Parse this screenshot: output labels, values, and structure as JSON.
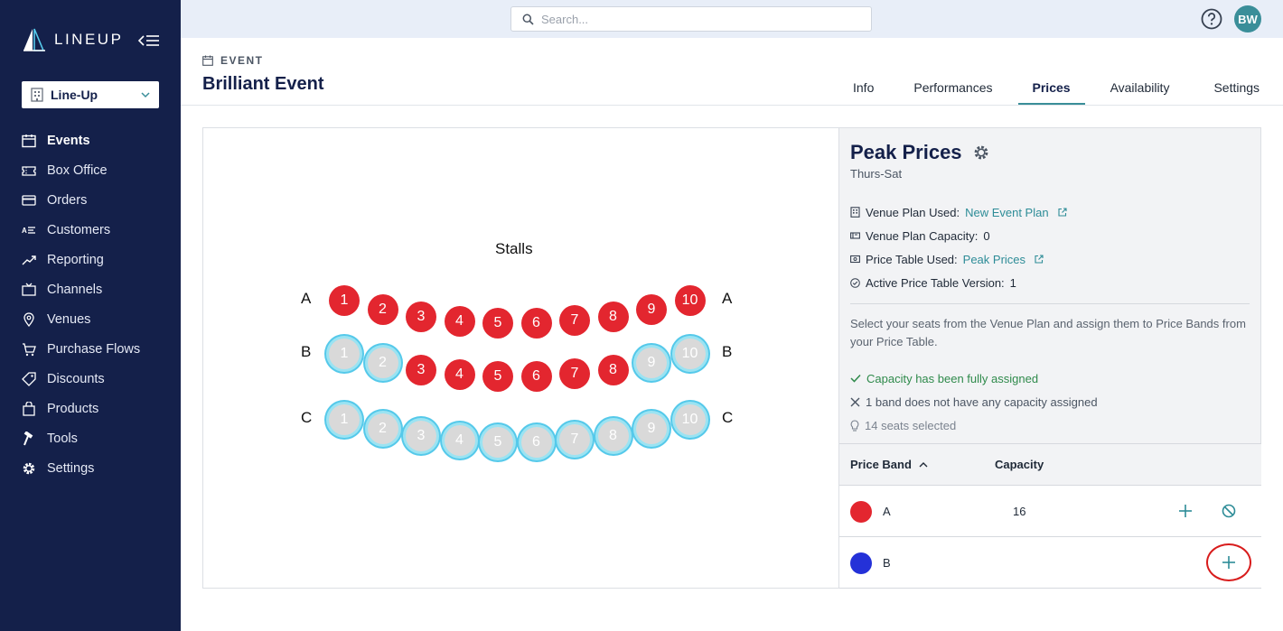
{
  "app": {
    "name": "LINEUP",
    "org": "Line-Up",
    "user_initials": "BW"
  },
  "search": {
    "placeholder": "Search..."
  },
  "sidebar": {
    "items": [
      {
        "label": "Events",
        "icon": "calendar-icon",
        "active": true
      },
      {
        "label": "Box Office",
        "icon": "ticket-icon"
      },
      {
        "label": "Orders",
        "icon": "credit-card-icon"
      },
      {
        "label": "Customers",
        "icon": "contact-list-icon"
      },
      {
        "label": "Reporting",
        "icon": "trend-chart-icon"
      },
      {
        "label": "Channels",
        "icon": "tv-icon"
      },
      {
        "label": "Venues",
        "icon": "map-pin-icon"
      },
      {
        "label": "Purchase Flows",
        "icon": "cart-icon"
      },
      {
        "label": "Discounts",
        "icon": "tag-icon"
      },
      {
        "label": "Products",
        "icon": "bag-icon"
      },
      {
        "label": "Tools",
        "icon": "hammer-icon"
      },
      {
        "label": "Settings",
        "icon": "gear-icon"
      }
    ]
  },
  "header": {
    "kicker": "EVENT",
    "title": "Brilliant Event",
    "tabs": [
      {
        "label": "Info"
      },
      {
        "label": "Performances"
      },
      {
        "label": "Prices",
        "active": true
      },
      {
        "label": "Availability"
      },
      {
        "label": "Settings"
      }
    ]
  },
  "plan": {
    "title": "Stalls",
    "rows": [
      {
        "label": "A",
        "seats": [
          "1",
          "2",
          "3",
          "4",
          "5",
          "6",
          "7",
          "8",
          "9",
          "10"
        ],
        "selected": []
      },
      {
        "label": "B",
        "seats": [
          "1",
          "2",
          "3",
          "4",
          "5",
          "6",
          "7",
          "8",
          "9",
          "10"
        ],
        "selected": [
          "1",
          "2",
          "9",
          "10"
        ]
      },
      {
        "label": "C",
        "seats": [
          "1",
          "2",
          "3",
          "4",
          "5",
          "6",
          "7",
          "8",
          "9",
          "10"
        ],
        "selected": [
          "1",
          "2",
          "3",
          "4",
          "5",
          "6",
          "7",
          "8",
          "9",
          "10"
        ]
      }
    ]
  },
  "price_table": {
    "title": "Peak Prices",
    "subtitle": "Thurs-Sat",
    "venue_plan_label": "Venue Plan Used:",
    "venue_plan_value": "New Event Plan",
    "venue_capacity_label": "Venue Plan Capacity:",
    "venue_capacity_value": "0",
    "price_table_label": "Price Table Used:",
    "price_table_value": "Peak Prices",
    "version_label": "Active Price Table Version:",
    "version_value": "1",
    "description": "Select your seats from the Venue Plan and assign them to Price Bands from your Price Table.",
    "status": {
      "capacity_ok": "Capacity has been fully assigned",
      "band_missing": "1 band does not have any capacity assigned",
      "selected": "14 seats selected"
    },
    "columns": {
      "band": "Price Band",
      "capacity": "Capacity"
    },
    "bands": [
      {
        "name": "A",
        "capacity": "16",
        "color": "#e3262f"
      },
      {
        "name": "B",
        "capacity": "",
        "color": "#2431d8"
      }
    ]
  },
  "colors": {
    "sidebar": "#14204a",
    "accent": "#3a8e99",
    "seat_available": "#e3262f",
    "seat_selected_ring": "#55c9ea"
  }
}
